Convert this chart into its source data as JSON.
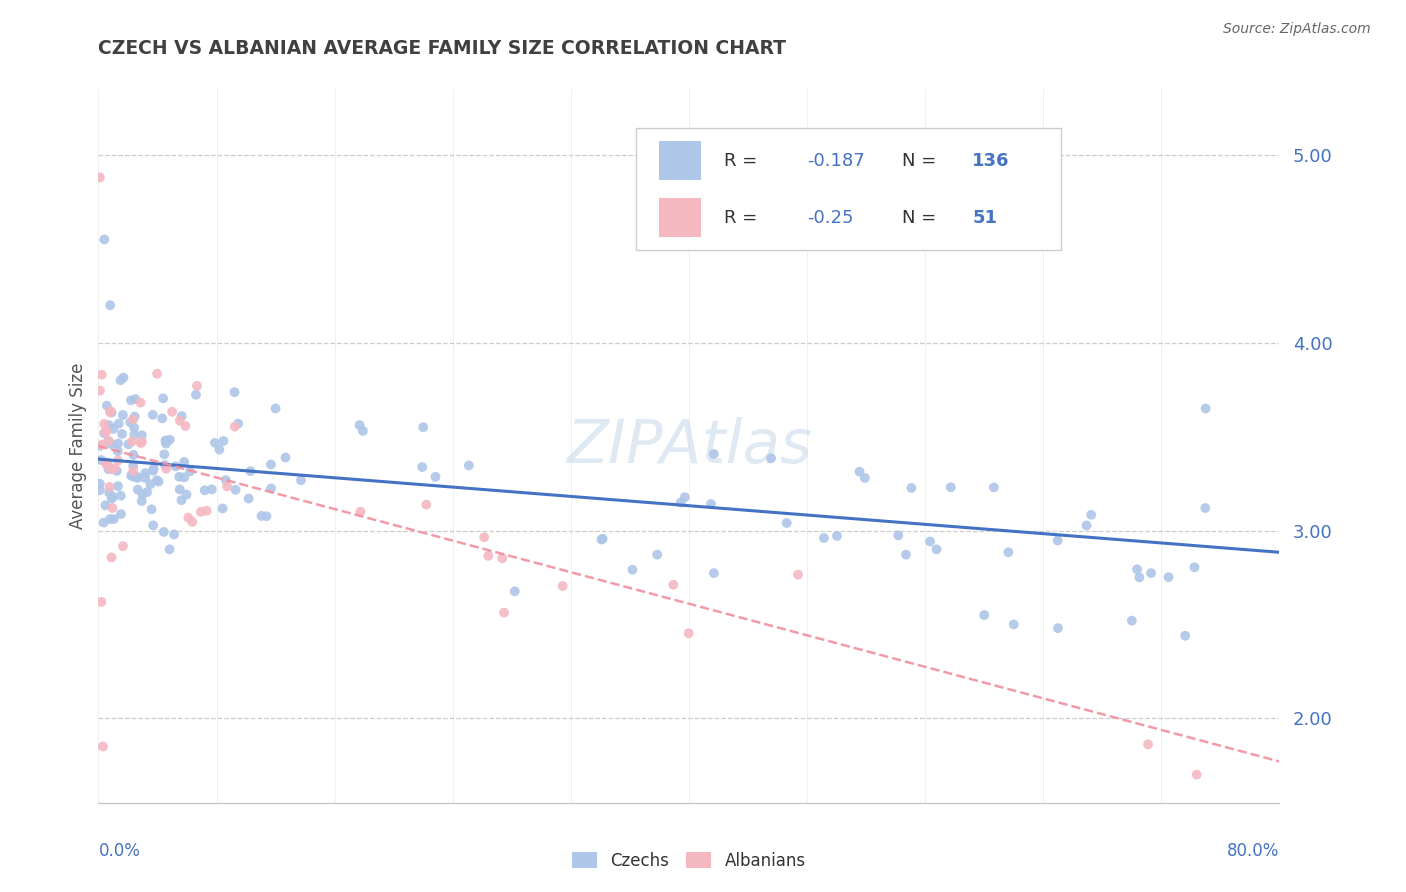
{
  "title": "CZECH VS ALBANIAN AVERAGE FAMILY SIZE CORRELATION CHART",
  "source": "Source: ZipAtlas.com",
  "ylabel": "Average Family Size",
  "yticks": [
    2.0,
    3.0,
    4.0,
    5.0
  ],
  "xlim": [
    0.0,
    0.8
  ],
  "ylim": [
    1.55,
    5.35
  ],
  "czech_R": -0.187,
  "czech_N": 136,
  "albanian_R": -0.25,
  "albanian_N": 51,
  "czech_color": "#aec6e8",
  "albanian_color": "#f4b8c1",
  "czech_line_color": "#4472c4",
  "albanian_line_color": "#f090a0",
  "watermark": "ZIPAtlas",
  "background_color": "#ffffff",
  "grid_color": "#c8c8c8",
  "title_color": "#404040",
  "axis_label_color": "#4472c4",
  "legend_R_color": "#4472c4",
  "legend_label_color": "#333333",
  "czech_intercept": 3.38,
  "czech_slope": -0.62,
  "albanian_intercept": 3.45,
  "albanian_slope": -2.1
}
